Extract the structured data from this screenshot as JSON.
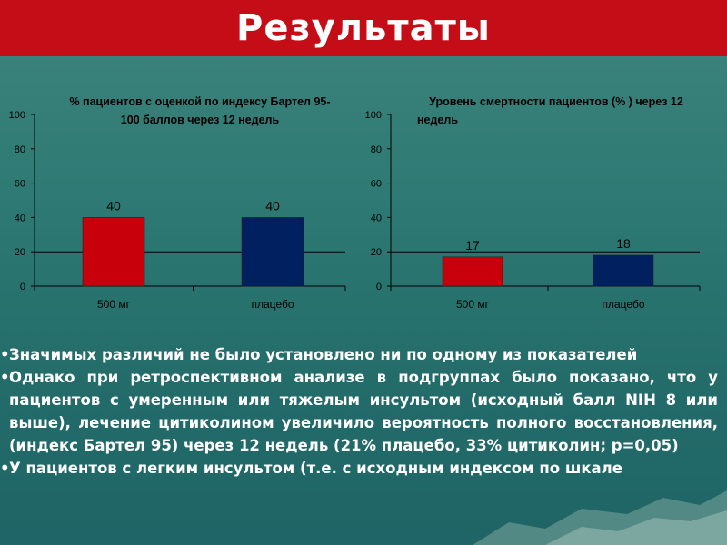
{
  "slide": {
    "title": "Результаты"
  },
  "colors": {
    "title_bar": "#c40d16",
    "bar_red": "#c8000b",
    "bar_navy": "#002060",
    "text": "#ffffff"
  },
  "chart_data": [
    {
      "type": "bar",
      "title": "% пациентов с оценкой по индексу Бартел 95-100 баллов через 12 недель",
      "title_lines": [
        "% пациентов с оценкой по индексу Бартел 95-",
        "100 баллов через 12 недель"
      ],
      "categories": [
        "500 мг",
        "плацебо"
      ],
      "values": [
        40,
        40
      ],
      "data_labels": [
        "40",
        "40"
      ],
      "bar_colors": [
        "#c8000b",
        "#002060"
      ],
      "ylim": [
        0,
        100
      ],
      "yticks": [
        "0",
        "20",
        "40",
        "60",
        "80",
        "100"
      ],
      "grid": false,
      "legend": "none"
    },
    {
      "type": "bar",
      "title": "Уровень смертности пациентов (% ) через 12 недель",
      "title_lines": [
        "Уровень смертности пациентов (% ) через 12",
        "недель"
      ],
      "categories": [
        "500 мг",
        "плацебо"
      ],
      "values": [
        17,
        18
      ],
      "data_labels": [
        "17",
        "18"
      ],
      "bar_colors": [
        "#c8000b",
        "#002060"
      ],
      "ylim": [
        0,
        100
      ],
      "yticks": [
        "0",
        "20",
        "40",
        "60",
        "80",
        "100"
      ],
      "grid": false,
      "legend": "none"
    }
  ],
  "bullets": [
    {
      "mark": "•",
      "text": "Значимых различий не было установлено ни по одному из показателей"
    },
    {
      "mark": "•",
      "text": "Однако при ретроспективном анализе в подгруппах было показано, что у пациентов с умеренным или тяжелым инсультом (исходный балл NIH 8 или выше), лечение цитиколином увеличило вероятность полного восстановления, (индекс Бартел 95) через 12 недель (21% плацебо, 33% цитиколин; р=0,05)"
    },
    {
      "mark": "•",
      "text": "У пациентов с легким инсультом (т.е. с исходным индексом по шкале"
    }
  ]
}
